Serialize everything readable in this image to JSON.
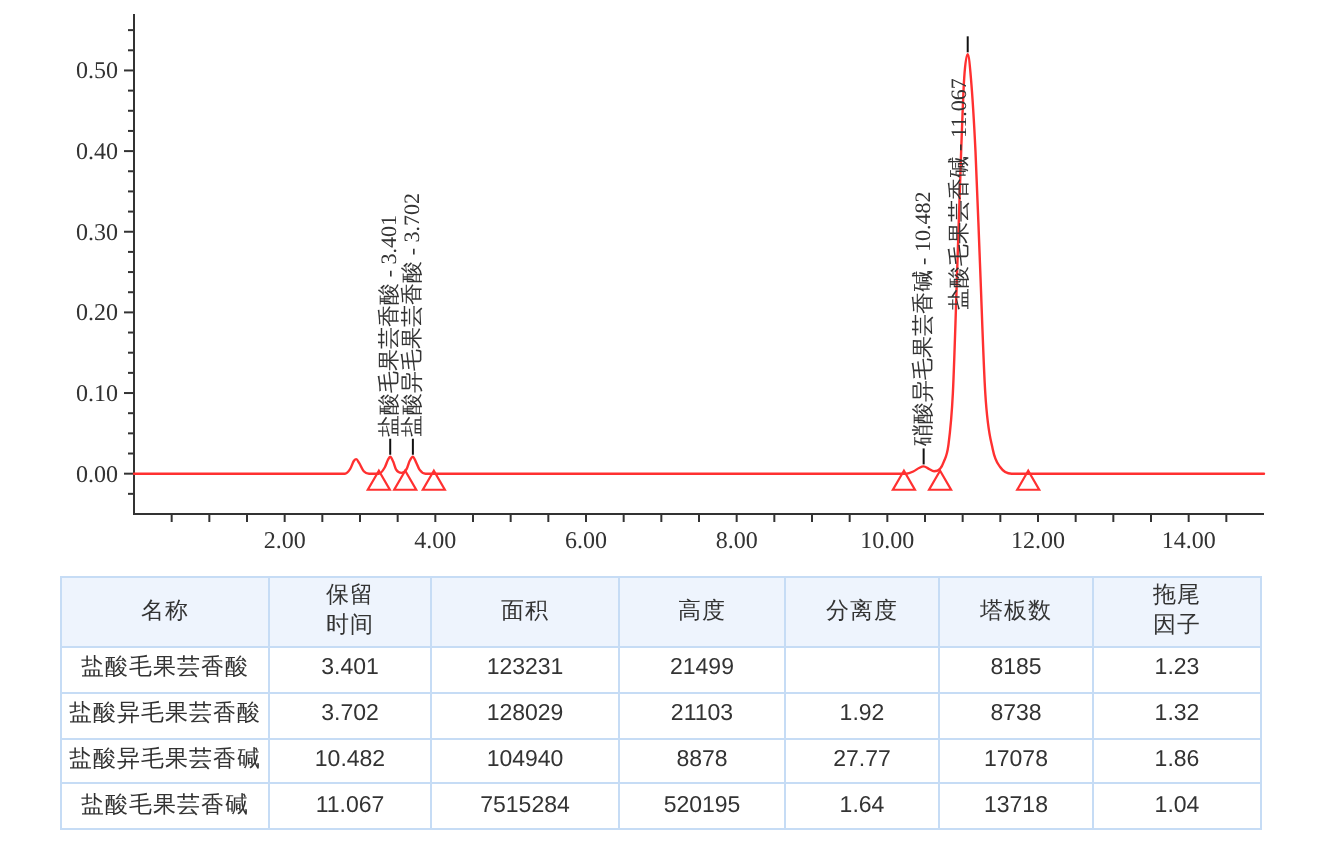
{
  "chart_data": [
    {
      "type": "line",
      "x": [
        0,
        2.8,
        2.87,
        2.92,
        2.95,
        2.99,
        3.05,
        3.12,
        3.25,
        3.33,
        3.37,
        3.401,
        3.44,
        3.48,
        3.55,
        3.62,
        3.66,
        3.702,
        3.74,
        3.79,
        3.87,
        10.25,
        10.35,
        10.42,
        10.482,
        10.55,
        10.62,
        10.7,
        10.75,
        10.81,
        10.87,
        10.93,
        10.98,
        11.02,
        11.067,
        11.11,
        11.17,
        11.23,
        11.3,
        11.4,
        11.5,
        11.65,
        15
      ],
      "series": [
        {
          "color": "#ff3030",
          "values": [
            0,
            0,
            0.006,
            0.016,
            0.018,
            0.013,
            0.003,
            0,
            0,
            0.008,
            0.017,
            0.021,
            0.015,
            0.005,
            0.001,
            0.006,
            0.016,
            0.021,
            0.015,
            0.005,
            0,
            0,
            0.003,
            0.007,
            0.009,
            0.006,
            0.003,
            0.006,
            0.015,
            0.035,
            0.1,
            0.26,
            0.4,
            0.49,
            0.52,
            0.49,
            0.4,
            0.26,
            0.1,
            0.03,
            0.008,
            0,
            0
          ]
        },
        {
          "type": "scatter",
          "marker": "triangle",
          "color": "#ff3030",
          "x": [
            3.25,
            3.6,
            3.98,
            10.22,
            10.7,
            11.87
          ],
          "values": [
            -0.01,
            -0.01,
            -0.01,
            -0.01,
            -0.01,
            -0.01
          ]
        }
      ],
      "xlim": [
        0,
        15
      ],
      "ylim": [
        -0.05,
        0.57
      ],
      "xticks": [
        {
          "value": 0.5,
          "label": null
        },
        {
          "value": 1,
          "label": null
        },
        {
          "value": 1.5,
          "label": null
        },
        {
          "value": 2,
          "label": "2.00"
        },
        {
          "value": 2.5,
          "label": null
        },
        {
          "value": 3,
          "label": null
        },
        {
          "value": 3.5,
          "label": null
        },
        {
          "value": 4,
          "label": "4.00"
        },
        {
          "value": 4.5,
          "label": null
        },
        {
          "value": 5,
          "label": null
        },
        {
          "value": 5.5,
          "label": null
        },
        {
          "value": 6,
          "label": "6.00"
        },
        {
          "value": 6.5,
          "label": null
        },
        {
          "value": 7,
          "label": null
        },
        {
          "value": 7.5,
          "label": null
        },
        {
          "value": 8,
          "label": "8.00"
        },
        {
          "value": 8.5,
          "label": null
        },
        {
          "value": 9,
          "label": null
        },
        {
          "value": 9.5,
          "label": null
        },
        {
          "value": 10,
          "label": "10.00"
        },
        {
          "value": 10.5,
          "label": null
        },
        {
          "value": 11,
          "label": null
        },
        {
          "value": 11.5,
          "label": null
        },
        {
          "value": 12,
          "label": "12.00"
        },
        {
          "value": 12.5,
          "label": null
        },
        {
          "value": 13,
          "label": null
        },
        {
          "value": 13.5,
          "label": null
        },
        {
          "value": 14,
          "label": "14.00"
        },
        {
          "value": 14.5,
          "label": null
        }
      ],
      "yticks": [
        {
          "value": -0.025,
          "label": null
        },
        {
          "value": 0,
          "label": "0.00"
        },
        {
          "value": 0.025,
          "label": null
        },
        {
          "value": 0.05,
          "label": null
        },
        {
          "value": 0.075,
          "label": null
        },
        {
          "value": 0.1,
          "label": "0.10"
        },
        {
          "value": 0.125,
          "label": null
        },
        {
          "value": 0.15,
          "label": null
        },
        {
          "value": 0.175,
          "label": null
        },
        {
          "value": 0.2,
          "label": "0.20"
        },
        {
          "value": 0.225,
          "label": null
        },
        {
          "value": 0.25,
          "label": null
        },
        {
          "value": 0.275,
          "label": null
        },
        {
          "value": 0.3,
          "label": "0.30"
        },
        {
          "value": 0.325,
          "label": null
        },
        {
          "value": 0.35,
          "label": null
        },
        {
          "value": 0.375,
          "label": null
        },
        {
          "value": 0.4,
          "label": "0.40"
        },
        {
          "value": 0.425,
          "label": null
        },
        {
          "value": 0.45,
          "label": null
        },
        {
          "value": 0.475,
          "label": null
        },
        {
          "value": 0.5,
          "label": "0.50"
        },
        {
          "value": 0.525,
          "label": null
        },
        {
          "value": 0.55,
          "label": null
        }
      ],
      "annotations": [
        {
          "text": "盐酸毛果芸香酸 - 3.401",
          "x": 3.401,
          "y": 0.021
        },
        {
          "text": "盐酸异毛果芸香酸 - 3.702",
          "x": 3.702,
          "y": 0.021
        },
        {
          "text": "硝酸异毛果芸香碱 - 10.482",
          "x": 10.482,
          "y": 0.009
        },
        {
          "text": "盐酸毛果芸香碱 - 11.067",
          "x": 11.067,
          "y": 0.52
        }
      ]
    },
    {
      "type": "other",
      "legend_title": "名称",
      "categories": [
        "保留时间",
        "面积",
        "高度",
        "分离度",
        "塔板数",
        "拖尾因子"
      ],
      "data_labels": true,
      "series": [
        {
          "name": "盐酸毛果芸香酸",
          "values": [
            3.401,
            123231,
            21499,
            null,
            8185,
            1.23
          ]
        },
        {
          "name": "盐酸异毛果芸香酸",
          "values": [
            3.702,
            128029,
            21103,
            1.92,
            8738,
            1.32
          ]
        },
        {
          "name": "盐酸异毛果芸香碱",
          "values": [
            10.482,
            104940,
            8878,
            27.77,
            17078,
            1.86
          ]
        },
        {
          "name": "盐酸毛果芸香碱",
          "values": [
            11.067,
            7515284,
            520195,
            1.64,
            13718,
            1.04
          ]
        }
      ]
    }
  ]
}
